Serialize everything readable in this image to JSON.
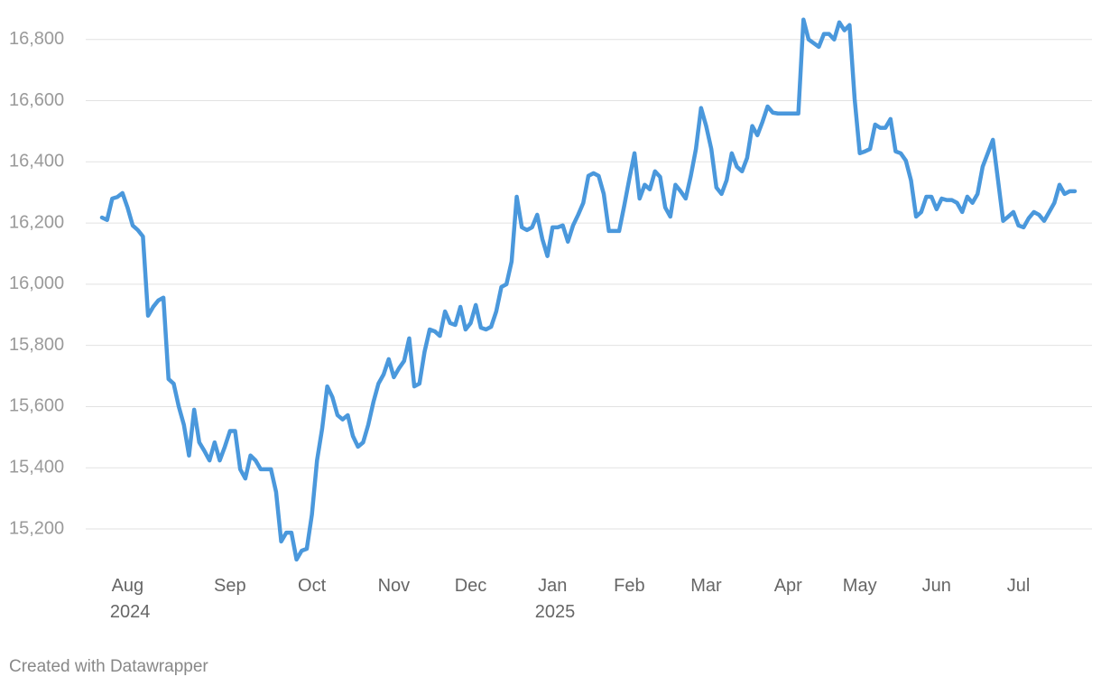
{
  "chart_data": {
    "type": "line",
    "categories": [
      null,
      null,
      null,
      null,
      null,
      "Aug 2024",
      null,
      null,
      null,
      null,
      null,
      null,
      null,
      null,
      null,
      null,
      null,
      null,
      null,
      null,
      null,
      null,
      null,
      null,
      null,
      "Sep",
      null,
      null,
      null,
      null,
      null,
      null,
      null,
      null,
      null,
      null,
      null,
      null,
      null,
      null,
      null,
      "Oct",
      null,
      null,
      null,
      null,
      null,
      null,
      null,
      null,
      null,
      null,
      null,
      null,
      null,
      null,
      null,
      "Nov",
      null,
      null,
      null,
      null,
      null,
      null,
      null,
      null,
      null,
      null,
      null,
      null,
      null,
      null,
      "Dec",
      null,
      null,
      null,
      null,
      null,
      null,
      null,
      null,
      null,
      null,
      null,
      null,
      null,
      null,
      null,
      "Jan 2025",
      null,
      null,
      null,
      null,
      null,
      null,
      null,
      null,
      null,
      null,
      null,
      null,
      null,
      null,
      "Feb",
      null,
      null,
      null,
      null,
      null,
      null,
      null,
      null,
      null,
      null,
      null,
      null,
      null,
      null,
      "Mar",
      null,
      null,
      null,
      null,
      null,
      null,
      null,
      null,
      null,
      null,
      null,
      null,
      null,
      null,
      null,
      "Apr",
      null,
      null,
      null,
      null,
      null,
      null,
      null,
      null,
      null,
      null,
      null,
      null,
      null,
      "May",
      null,
      null,
      null,
      null,
      null,
      null,
      null,
      null,
      null,
      null,
      null,
      null,
      null,
      null,
      "Jun",
      null,
      null,
      null,
      null,
      null,
      null,
      null,
      null,
      null,
      null,
      null,
      null,
      null,
      null,
      null,
      "Jul",
      null,
      null,
      null,
      null,
      null,
      null,
      null,
      null,
      null,
      null,
      null
    ],
    "series": [
      {
        "color": "#4a98dc",
        "values": [
          16218,
          16210,
          16280,
          16285,
          16298,
          16250,
          16192,
          16177,
          16156,
          15897,
          15926,
          15947,
          15956,
          15690,
          15675,
          15600,
          15540,
          15440,
          15590,
          15483,
          15455,
          15424,
          15483,
          15424,
          15469,
          15520,
          15520,
          15395,
          15365,
          15440,
          15424,
          15395,
          15395,
          15395,
          15321,
          15159,
          15188,
          15188,
          15100,
          15129,
          15135,
          15247,
          15424,
          15528,
          15666,
          15631,
          15572,
          15558,
          15572,
          15504,
          15469,
          15483,
          15540,
          15614,
          15675,
          15705,
          15755,
          15696,
          15725,
          15749,
          15823,
          15666,
          15675,
          15779,
          15852,
          15846,
          15831,
          15911,
          15873,
          15867,
          15926,
          15852,
          15873,
          15932,
          15858,
          15852,
          15861,
          15911,
          15991,
          16000,
          16074,
          16286,
          16186,
          16177,
          16186,
          16227,
          16148,
          16092,
          16186,
          16186,
          16192,
          16139,
          16192,
          16227,
          16266,
          16354,
          16363,
          16354,
          16295,
          16174,
          16174,
          16174,
          16257,
          16345,
          16428,
          16280,
          16325,
          16310,
          16369,
          16351,
          16251,
          16221,
          16325,
          16304,
          16280,
          16354,
          16442,
          16576,
          16517,
          16442,
          16316,
          16295,
          16340,
          16428,
          16384,
          16369,
          16413,
          16517,
          16487,
          16531,
          16581,
          16561,
          16558,
          16558,
          16558,
          16558,
          16558,
          16865,
          16800,
          16788,
          16776,
          16818,
          16818,
          16800,
          16856,
          16830,
          16847,
          16605,
          16428,
          16434,
          16442,
          16522,
          16511,
          16511,
          16540,
          16434,
          16428,
          16404,
          16340,
          16221,
          16236,
          16286,
          16286,
          16245,
          16280,
          16275,
          16275,
          16266,
          16236,
          16286,
          16266,
          16295,
          16384,
          16428,
          16472,
          16340,
          16207,
          16221,
          16236,
          16192,
          16186,
          16216,
          16236,
          16227,
          16207,
          16236,
          16266,
          16325,
          16295,
          16304,
          16304
        ]
      }
    ],
    "ylim": [
      15085,
      16870
    ],
    "yticks": [
      {
        "value": 15200,
        "label": "15,200"
      },
      {
        "value": 15400,
        "label": "15,400"
      },
      {
        "value": 15600,
        "label": "15,600"
      },
      {
        "value": 15800,
        "label": "15,800"
      },
      {
        "value": 16000,
        "label": "16,000"
      },
      {
        "value": 16200,
        "label": "16,200"
      },
      {
        "value": 16400,
        "label": "16,400"
      },
      {
        "value": 16600,
        "label": "16,600"
      },
      {
        "value": 16800,
        "label": "16,800"
      }
    ],
    "grid": true,
    "credit": "Created with Datawrapper"
  }
}
